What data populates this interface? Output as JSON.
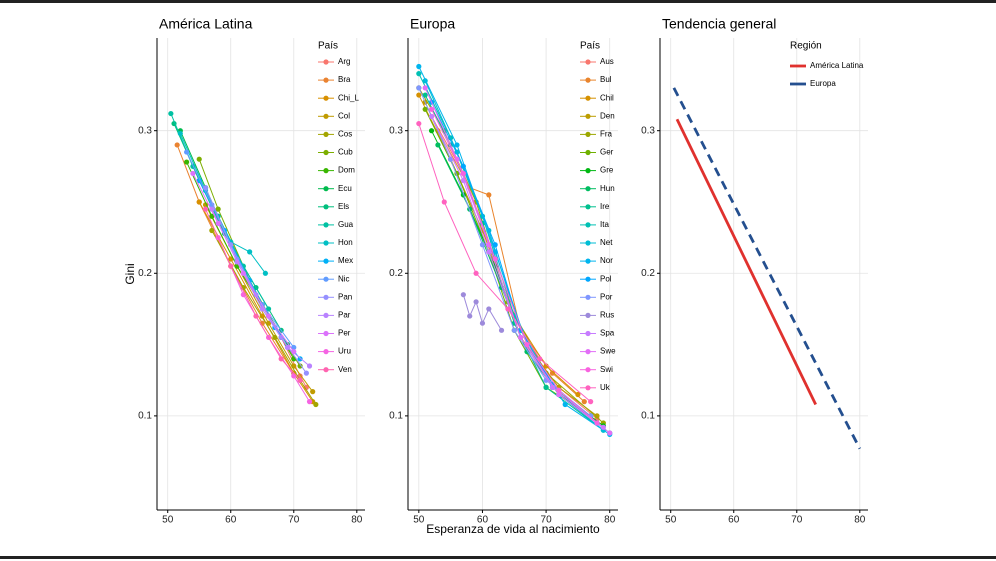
{
  "chart_data": [
    {
      "type": "line",
      "title": "América Latina",
      "ylabel": "Gini",
      "legend_title": "País",
      "legend": "top-right",
      "grid": true,
      "xlim": [
        48.3,
        81.3
      ],
      "ylim": [
        0.034,
        0.365
      ],
      "xticks": [
        50,
        60,
        70,
        80
      ],
      "yticks": [
        0.1,
        0.2,
        0.3
      ],
      "series": [
        {
          "name": "Arg",
          "color": "#F8766D",
          "x": [
            62,
            65,
            68,
            71,
            72
          ],
          "values": [
            0.2,
            0.178,
            0.155,
            0.128,
            0.12
          ]
        },
        {
          "name": "Bra",
          "color": "#EA8331",
          "x": [
            51.5,
            55,
            60,
            65,
            70
          ],
          "values": [
            0.29,
            0.25,
            0.205,
            0.165,
            0.13
          ]
        },
        {
          "name": "Chi_L",
          "color": "#D89000",
          "x": [
            55,
            60,
            65,
            70,
            73
          ],
          "values": [
            0.25,
            0.21,
            0.17,
            0.13,
            0.11
          ]
        },
        {
          "name": "Col",
          "color": "#C09B00",
          "x": [
            56,
            61,
            66,
            70,
            73
          ],
          "values": [
            0.248,
            0.205,
            0.165,
            0.135,
            0.117
          ]
        },
        {
          "name": "Cos",
          "color": "#A3A500",
          "x": [
            57,
            62,
            67,
            71,
            73.5
          ],
          "values": [
            0.23,
            0.19,
            0.155,
            0.125,
            0.108
          ]
        },
        {
          "name": "Cub",
          "color": "#7CAE00",
          "x": [
            55,
            58,
            63,
            68,
            71
          ],
          "values": [
            0.28,
            0.245,
            0.195,
            0.155,
            0.135
          ]
        },
        {
          "name": "Dom",
          "color": "#39B600",
          "x": [
            53,
            57,
            61,
            66,
            70
          ],
          "values": [
            0.278,
            0.24,
            0.205,
            0.17,
            0.14
          ]
        },
        {
          "name": "Ecu",
          "color": "#00BB4E",
          "x": [
            52,
            56,
            60,
            65,
            69
          ],
          "values": [
            0.3,
            0.26,
            0.22,
            0.178,
            0.15
          ]
        },
        {
          "name": "Els",
          "color": "#00BF7D",
          "x": [
            51,
            55,
            59,
            64,
            68
          ],
          "values": [
            0.305,
            0.265,
            0.228,
            0.19,
            0.16
          ]
        },
        {
          "name": "Gua",
          "color": "#00C1A3",
          "x": [
            50.5,
            54,
            58,
            62,
            66
          ],
          "values": [
            0.312,
            0.275,
            0.24,
            0.205,
            0.175
          ]
        },
        {
          "name": "Hon",
          "color": "#00BFC4",
          "x": [
            52,
            56,
            60,
            63,
            65.5
          ],
          "values": [
            0.298,
            0.258,
            0.222,
            0.215,
            0.2
          ]
        },
        {
          "name": "Mex",
          "color": "#00B0F6",
          "x": [
            55,
            59,
            63,
            67,
            71
          ],
          "values": [
            0.265,
            0.23,
            0.195,
            0.162,
            0.14
          ]
        },
        {
          "name": "Nic",
          "color": "#619CFF",
          "x": [
            53,
            57,
            61,
            65,
            70
          ],
          "values": [
            0.285,
            0.248,
            0.21,
            0.178,
            0.148
          ]
        },
        {
          "name": "Pan",
          "color": "#9590FF",
          "x": [
            56,
            60,
            64,
            68,
            72
          ],
          "values": [
            0.26,
            0.22,
            0.185,
            0.155,
            0.13
          ]
        },
        {
          "name": "Par",
          "color": "#B983FF",
          "x": [
            57,
            61,
            65,
            69,
            72.5
          ],
          "values": [
            0.245,
            0.208,
            0.175,
            0.148,
            0.135
          ]
        },
        {
          "name": "Per",
          "color": "#DB72FB",
          "x": [
            54,
            58,
            62,
            66,
            70
          ],
          "values": [
            0.27,
            0.235,
            0.2,
            0.17,
            0.145
          ]
        },
        {
          "name": "Uru",
          "color": "#F564E3",
          "x": [
            58,
            62,
            66,
            70,
            72.5
          ],
          "values": [
            0.225,
            0.185,
            0.155,
            0.128,
            0.11
          ]
        },
        {
          "name": "Ven",
          "color": "#FF64B0",
          "x": [
            56,
            60,
            64,
            68,
            71
          ],
          "values": [
            0.245,
            0.205,
            0.17,
            0.14,
            0.125
          ]
        }
      ]
    },
    {
      "type": "line",
      "title": "Europa",
      "xlabel": "Esperanza de vida al nacimiento",
      "legend_title": "País",
      "legend": "top-right",
      "grid": true,
      "xlim": [
        48.3,
        81.3
      ],
      "ylim": [
        0.034,
        0.365
      ],
      "xticks": [
        50,
        60,
        70,
        80
      ],
      "yticks": [
        0.1,
        0.2,
        0.3
      ],
      "series": [
        {
          "name": "Aus",
          "color": "#F8766D",
          "x": [
            52,
            57,
            62,
            67,
            72,
            78
          ],
          "values": [
            0.31,
            0.27,
            0.21,
            0.15,
            0.12,
            0.098
          ]
        },
        {
          "name": "Bul",
          "color": "#E9842C",
          "x": [
            53,
            58,
            61,
            66,
            71,
            76
          ],
          "values": [
            0.3,
            0.26,
            0.255,
            0.16,
            0.13,
            0.11
          ]
        },
        {
          "name": "Chil",
          "color": "#D69100",
          "x": [
            50,
            55,
            60,
            65,
            70,
            75
          ],
          "values": [
            0.325,
            0.28,
            0.23,
            0.17,
            0.135,
            0.115
          ]
        },
        {
          "name": "Den",
          "color": "#BC9D00",
          "x": [
            51,
            56,
            61,
            66,
            72,
            78
          ],
          "values": [
            0.32,
            0.27,
            0.22,
            0.155,
            0.12,
            0.1
          ]
        },
        {
          "name": "Fra",
          "color": "#9CA700",
          "x": [
            50,
            54,
            59,
            64,
            70,
            79
          ],
          "values": [
            0.33,
            0.3,
            0.25,
            0.18,
            0.13,
            0.095
          ]
        },
        {
          "name": "Ger",
          "color": "#6FB000",
          "x": [
            51,
            56,
            61,
            65,
            70,
            77
          ],
          "values": [
            0.315,
            0.27,
            0.215,
            0.16,
            0.12,
            0.1
          ]
        },
        {
          "name": "Gre",
          "color": "#00B813",
          "x": [
            52,
            57,
            62,
            66,
            71,
            79
          ],
          "values": [
            0.3,
            0.255,
            0.205,
            0.155,
            0.12,
            0.093
          ]
        },
        {
          "name": "Hun",
          "color": "#00BD61",
          "x": [
            53,
            58,
            63,
            67,
            72,
            77
          ],
          "values": [
            0.29,
            0.245,
            0.19,
            0.145,
            0.115,
            0.1
          ]
        },
        {
          "name": "Ire",
          "color": "#00C08E",
          "x": [
            51,
            55,
            60,
            65,
            70,
            79
          ],
          "values": [
            0.325,
            0.29,
            0.235,
            0.165,
            0.12,
            0.09
          ]
        },
        {
          "name": "Ita",
          "color": "#00C0B4",
          "x": [
            50,
            55,
            60,
            65,
            71,
            80
          ],
          "values": [
            0.34,
            0.295,
            0.24,
            0.17,
            0.12,
            0.088
          ]
        },
        {
          "name": "Net",
          "color": "#00BDD4",
          "x": [
            51,
            56,
            61,
            66,
            72,
            79
          ],
          "values": [
            0.335,
            0.285,
            0.23,
            0.16,
            0.115,
            0.09
          ]
        },
        {
          "name": "Nor",
          "color": "#00B5EE",
          "x": [
            50,
            56,
            62,
            67,
            73,
            80
          ],
          "values": [
            0.345,
            0.29,
            0.215,
            0.15,
            0.108,
            0.087
          ]
        },
        {
          "name": "Pol",
          "color": "#00A7FF",
          "x": [
            52,
            57,
            62,
            66,
            71,
            78
          ],
          "values": [
            0.32,
            0.275,
            0.22,
            0.16,
            0.122,
            0.095
          ]
        },
        {
          "name": "Por",
          "color": "#7F96FF",
          "x": [
            50,
            55,
            60,
            65,
            70,
            77
          ],
          "values": [
            0.33,
            0.28,
            0.22,
            0.16,
            0.125,
            0.1
          ]
        },
        {
          "name": "Rus",
          "color": "#9D8ADB",
          "x": [
            57,
            58,
            59,
            60,
            61,
            63
          ],
          "values": [
            0.185,
            0.17,
            0.18,
            0.165,
            0.175,
            0.16
          ]
        },
        {
          "name": "Spa",
          "color": "#C77CFF",
          "x": [
            52,
            57,
            61,
            66,
            71,
            79
          ],
          "values": [
            0.31,
            0.265,
            0.215,
            0.155,
            0.12,
            0.092
          ]
        },
        {
          "name": "Swe",
          "color": "#E26EF7",
          "x": [
            51,
            56,
            61,
            66,
            72,
            80
          ],
          "values": [
            0.33,
            0.28,
            0.22,
            0.155,
            0.115,
            0.088
          ]
        },
        {
          "name": "Swi",
          "color": "#F863DF",
          "x": [
            52,
            57,
            62,
            67,
            72,
            78
          ],
          "values": [
            0.315,
            0.27,
            0.21,
            0.15,
            0.118,
            0.095
          ]
        },
        {
          "name": "Uk",
          "color": "#FF62BF",
          "x": [
            50,
            54,
            59,
            64,
            69,
            77
          ],
          "values": [
            0.305,
            0.25,
            0.2,
            0.175,
            0.14,
            0.11
          ]
        }
      ]
    },
    {
      "type": "line",
      "title": "Tendencia general",
      "legend_title": "Región",
      "legend": "top-right",
      "grid": true,
      "xlim": [
        48.3,
        81.3
      ],
      "ylim": [
        0.034,
        0.365
      ],
      "xticks": [
        50,
        60,
        70,
        80
      ],
      "yticks": [
        0.1,
        0.2,
        0.3
      ],
      "series": [
        {
          "name": "América Latina",
          "color": "#E0312E",
          "linestyle": "solid",
          "x": [
            51,
            73
          ],
          "values": [
            0.308,
            0.108
          ]
        },
        {
          "name": "Europa",
          "color": "#244F8F",
          "linestyle": "dashed",
          "x": [
            50.5,
            80
          ],
          "values": [
            0.33,
            0.077
          ]
        }
      ]
    }
  ]
}
